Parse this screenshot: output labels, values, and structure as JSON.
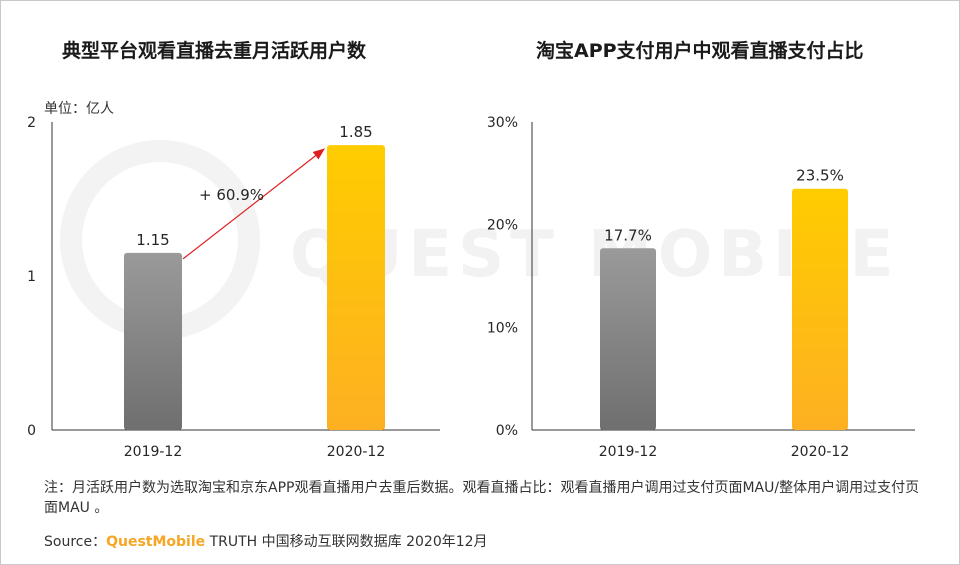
{
  "watermark": "QUEST MOBILE",
  "left_title": "典型平台观看直播去重月活跃用户数",
  "right_title": "淘宝APP支付用户中观看直播支付占比",
  "unit_label": "单位：亿人",
  "growth_label": "+ 60.9%",
  "note": "注：月活跃用户数为选取淘宝和京东APP观看直播用户去重后数据。观看直播占比：观看直播用户调用过支付页面MAU/整体用户调用过支付页面MAU 。",
  "source_prefix": "Source：",
  "source_brand": "QuestMobile",
  "source_suffix": " TRUTH 中国移动互联网数据库 2020年12月",
  "colors": {
    "gray_bar": "#8c8c8c",
    "gold_bar": "#ffc000",
    "arrow": "#e02020"
  },
  "chart_data": [
    {
      "type": "bar",
      "title": "典型平台观看直播去重月活跃用户数",
      "categories": [
        "2019-12",
        "2020-12"
      ],
      "values": [
        1.15,
        1.85
      ],
      "labels": [
        "1.15",
        "1.85"
      ],
      "yticks": [
        "0",
        "1",
        "2"
      ],
      "ylim": [
        0,
        2
      ],
      "unit": "单位：亿人",
      "annotation": "+ 60.9%"
    },
    {
      "type": "bar",
      "title": "淘宝APP支付用户中观看直播支付占比",
      "categories": [
        "2019-12",
        "2020-12"
      ],
      "values": [
        17.7,
        23.5
      ],
      "labels": [
        "17.7%",
        "23.5%"
      ],
      "yticks": [
        "0%",
        "10%",
        "20%",
        "30%"
      ],
      "ylim": [
        0,
        30
      ]
    }
  ]
}
